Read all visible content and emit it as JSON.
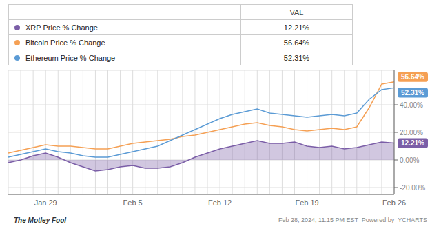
{
  "chart_data": {
    "type": "line",
    "categories": [
      null,
      null,
      null,
      "Jan 29",
      null,
      null,
      null,
      null,
      null,
      null,
      "Feb 5",
      null,
      null,
      null,
      null,
      null,
      null,
      "Feb 12",
      null,
      null,
      null,
      null,
      null,
      null,
      "Feb 19",
      null,
      null,
      null,
      null,
      null,
      null,
      "Feb 26"
    ],
    "series": [
      {
        "name": "XRP Price % Change",
        "type": "area",
        "color": "#7b5ea7",
        "values": [
          -2,
          0,
          3,
          5,
          2,
          -2,
          -5,
          -8,
          -7,
          -5,
          -4,
          -6,
          -6,
          -5,
          -2,
          2,
          5,
          8,
          10,
          12,
          14,
          12,
          12,
          13,
          10,
          9,
          10,
          8,
          9,
          11,
          13,
          12.21
        ],
        "value_labels": [
          null,
          null,
          null,
          null,
          null,
          null,
          null,
          null,
          null,
          null,
          null,
          null,
          null,
          null,
          null,
          null,
          null,
          null,
          null,
          null,
          null,
          null,
          null,
          null,
          null,
          null,
          null,
          null,
          null,
          null,
          null,
          "12.21%"
        ]
      },
      {
        "name": "Bitcoin Price % Change",
        "type": "line",
        "color": "#f5a054",
        "values": [
          5,
          7,
          9,
          11,
          10,
          10,
          9,
          8,
          8,
          10,
          12,
          13,
          14,
          15,
          17,
          18,
          20,
          22,
          24,
          26,
          27,
          25,
          24,
          22,
          21,
          22,
          23,
          22,
          24,
          38,
          55,
          56.64
        ],
        "value_labels": [
          null,
          null,
          null,
          null,
          null,
          null,
          null,
          null,
          null,
          null,
          null,
          null,
          null,
          null,
          null,
          null,
          null,
          null,
          null,
          null,
          null,
          null,
          null,
          null,
          null,
          null,
          null,
          null,
          null,
          null,
          null,
          "56.64%"
        ]
      },
      {
        "name": "Ethereum Price % Change",
        "type": "line",
        "color": "#5b9bd5",
        "values": [
          2,
          4,
          6,
          8,
          6,
          5,
          3,
          2,
          2,
          4,
          6,
          8,
          10,
          14,
          18,
          22,
          26,
          30,
          33,
          35,
          37,
          34,
          33,
          32,
          31,
          32,
          33,
          32,
          34,
          44,
          51,
          52.31
        ],
        "value_labels": [
          null,
          null,
          null,
          null,
          null,
          null,
          null,
          null,
          null,
          null,
          null,
          null,
          null,
          null,
          null,
          null,
          null,
          null,
          null,
          null,
          null,
          null,
          null,
          null,
          null,
          null,
          null,
          null,
          null,
          null,
          null,
          "52.31%"
        ]
      }
    ],
    "ylim": [
      -25,
      65
    ],
    "yticks": [
      {
        "value": -20,
        "label": "-20.00%"
      },
      {
        "value": 0,
        "label": "0.00%"
      },
      {
        "value": 20,
        "label": "20.00%"
      },
      {
        "value": 40,
        "label": "40.00%"
      }
    ],
    "grid": true,
    "legend": "top",
    "annotations": [
      "VAL",
      "The Motley Fool",
      "Feb 28, 2024, 11:15 PM EST  Powered by  YCHARTS"
    ]
  }
}
